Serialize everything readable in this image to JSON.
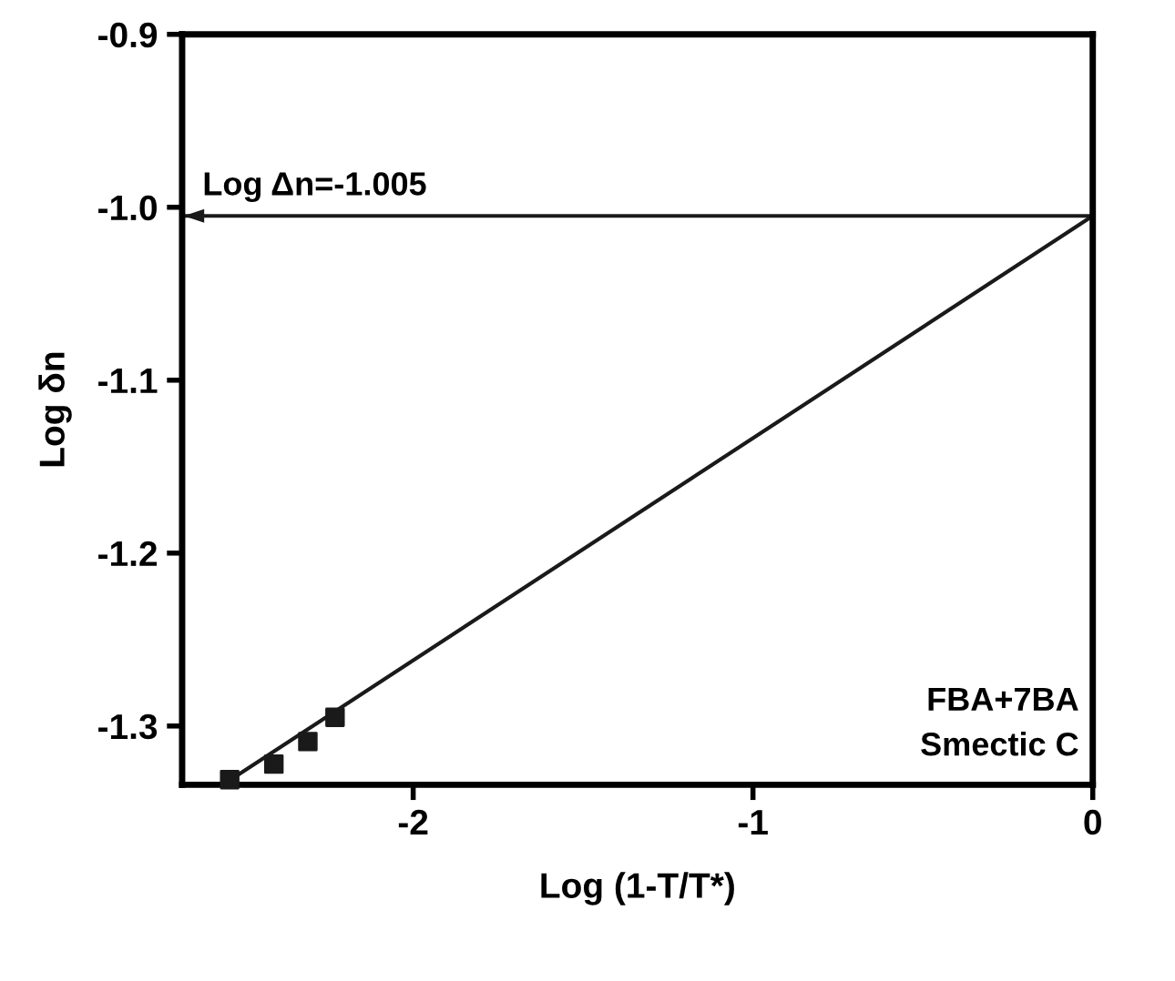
{
  "chart_data": {
    "type": "scatter",
    "xlabel": "Log (1-T/T*)",
    "ylabel": "Log δn",
    "xlim": [
      -2.68,
      0
    ],
    "xticks": [
      -2,
      -1,
      0
    ],
    "ylim": [
      -1.334,
      -0.9
    ],
    "yticks": [
      -1.3,
      -1.2,
      -1.1,
      {
        "value": -1,
        "label": "-1.0"
      },
      -0.9
    ],
    "series": [
      {
        "color": "#1a1a1a",
        "marker": "square",
        "x": [
          -2.54,
          -2.41,
          -2.31,
          -2.23
        ],
        "values": [
          -1.331,
          -1.322,
          -1.309,
          -1.295
        ]
      },
      {
        "type": "line",
        "color": "#1a1a1a",
        "marker": "none",
        "line_style": "solid",
        "x": [
          -2.56,
          0
        ],
        "values": [
          -1.334,
          -1.005
        ]
      }
    ],
    "ref_lines": [
      {
        "axis": "y",
        "value": -1.005,
        "label": "Log Δn=-1.005",
        "color": "#1a1a1a"
      }
    ],
    "annotations": [
      "FBA+7BA\nSmectic C"
    ],
    "grid": false,
    "legend": false
  }
}
